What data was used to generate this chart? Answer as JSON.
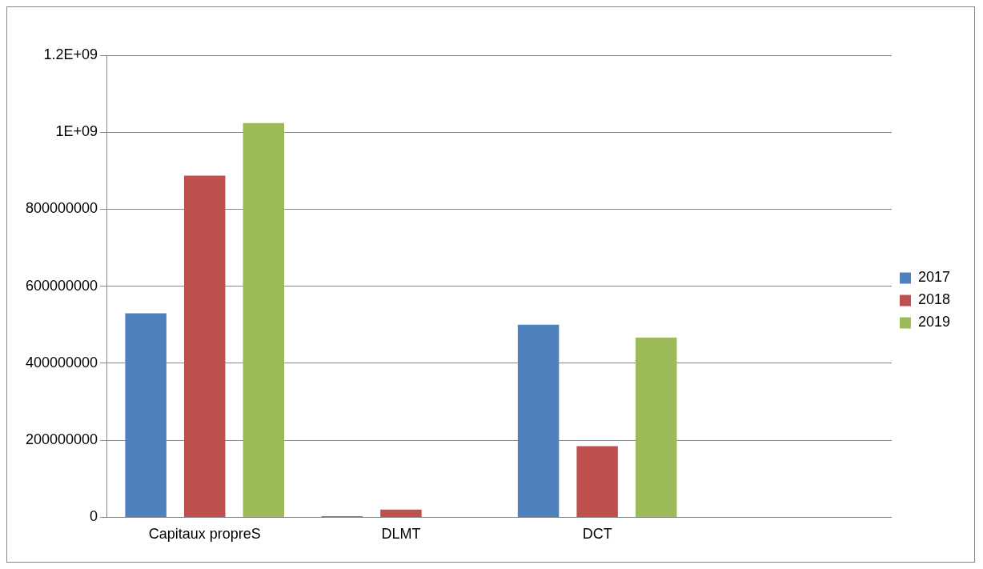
{
  "chart_data": {
    "type": "bar",
    "categories": [
      "Capitaux propreS",
      "DLMT",
      "DCT",
      null
    ],
    "series": [
      {
        "name": "2017",
        "color": "#4f81bd",
        "values": [
          530000000,
          3000000,
          500000000,
          null
        ]
      },
      {
        "name": "2018",
        "color": "#c0504d",
        "values": [
          887000000,
          20000000,
          185000000,
          null
        ]
      },
      {
        "name": "2019",
        "color": "#9bbb59",
        "values": [
          1024000000,
          1000000,
          467000000,
          null
        ]
      }
    ],
    "ylim": [
      0,
      1200000000
    ],
    "yticks": [
      0,
      200000000,
      400000000,
      600000000,
      800000000,
      {
        "value": 1000000000,
        "label": "1E+09"
      },
      {
        "value": 1200000000,
        "label": "1.2E+09"
      }
    ],
    "grid": "y",
    "legend": "right"
  }
}
